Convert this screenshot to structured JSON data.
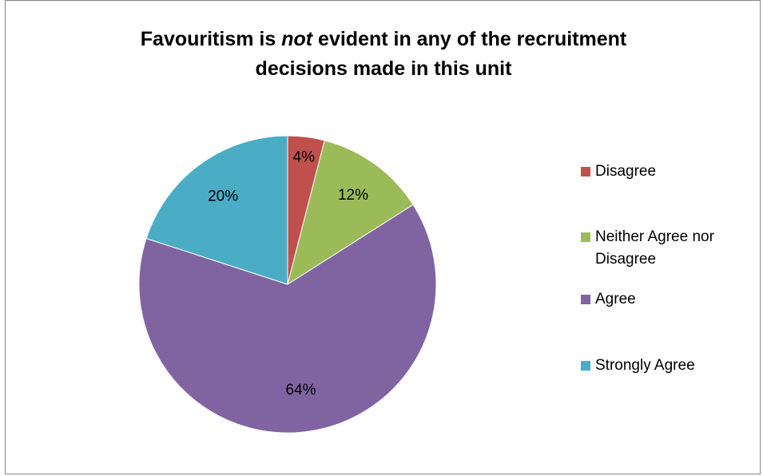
{
  "chart_data": {
    "type": "pie",
    "title": {
      "prefix": "Favouritism is ",
      "emphasis": "not",
      "suffix": " evident in any of the recruitment",
      "line2": "decisions made in this unit"
    },
    "slices": [
      {
        "label": "Disagree",
        "value": 4,
        "data_label": "4%",
        "color": "#C0504D"
      },
      {
        "label": "Neither Agree nor Disagree",
        "value": 12,
        "data_label": "12%",
        "color": "#9BBB59"
      },
      {
        "label": "Agree",
        "value": 64,
        "data_label": "64%",
        "color": "#8064A2"
      },
      {
        "label": "Strongly Agree",
        "value": 20,
        "data_label": "20%",
        "color": "#4BACC6"
      }
    ],
    "legend_position": "right",
    "start_angle": "12 o'clock, clockwise"
  }
}
